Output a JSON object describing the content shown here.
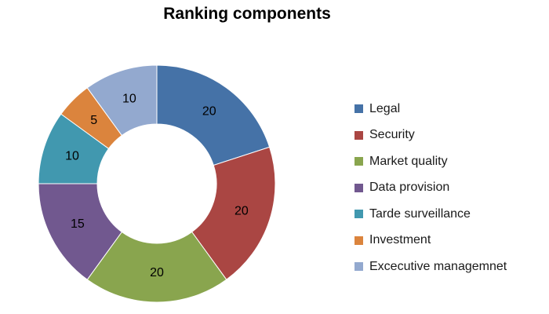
{
  "chart_data": {
    "type": "pie",
    "title": "Ranking components",
    "categories": [
      "Legal",
      "Security",
      "Market quality",
      "Data provision",
      "Tarde surveillance",
      "Investment",
      "Excecutive managemnet"
    ],
    "values": [
      20,
      20,
      20,
      15,
      10,
      5,
      10
    ],
    "colors": [
      "#4572A7",
      "#AA4643",
      "#89A54E",
      "#71588F",
      "#4198AF",
      "#DB843D",
      "#93A9CF"
    ],
    "legend_position": "right",
    "style": "donut",
    "data_labels": true
  }
}
